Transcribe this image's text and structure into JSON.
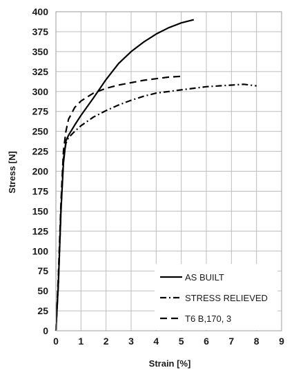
{
  "chart_data": {
    "type": "line",
    "xlabel": "Strain [%]",
    "ylabel": "Stress [N]",
    "xlim": [
      0,
      9
    ],
    "ylim": [
      0,
      400
    ],
    "x_ticks": [
      0,
      1,
      2,
      3,
      4,
      5,
      6,
      7,
      8,
      9
    ],
    "y_ticks": [
      0,
      25,
      50,
      75,
      100,
      125,
      150,
      175,
      200,
      225,
      250,
      275,
      300,
      325,
      350,
      375,
      400
    ],
    "grid": true,
    "legend_position": "bottom-right",
    "series": [
      {
        "name": "AS BUILT",
        "line_style": "solid",
        "color": "#000000",
        "points": [
          [
            0,
            0
          ],
          [
            0.1,
            60
          ],
          [
            0.2,
            150
          ],
          [
            0.3,
            210
          ],
          [
            0.4,
            238
          ],
          [
            0.5,
            245
          ],
          [
            0.75,
            258
          ],
          [
            1,
            270
          ],
          [
            1.5,
            292
          ],
          [
            2,
            315
          ],
          [
            2.5,
            335
          ],
          [
            3,
            350
          ],
          [
            3.5,
            362
          ],
          [
            4,
            372
          ],
          [
            4.5,
            380
          ],
          [
            5,
            386
          ],
          [
            5.5,
            390
          ]
        ]
      },
      {
        "name": "STRESS RELIEVED",
        "line_style": "dash-dot",
        "color": "#000000",
        "points": [
          [
            0,
            0
          ],
          [
            0.1,
            60
          ],
          [
            0.2,
            150
          ],
          [
            0.3,
            215
          ],
          [
            0.4,
            235
          ],
          [
            0.5,
            242
          ],
          [
            0.75,
            250
          ],
          [
            1,
            257
          ],
          [
            1.5,
            268
          ],
          [
            2,
            276
          ],
          [
            2.5,
            283
          ],
          [
            3,
            289
          ],
          [
            3.5,
            294
          ],
          [
            4,
            298
          ],
          [
            4.5,
            300
          ],
          [
            5,
            302
          ],
          [
            5.5,
            304
          ],
          [
            6,
            306
          ],
          [
            6.5,
            307
          ],
          [
            7,
            308
          ],
          [
            7.5,
            309
          ],
          [
            8,
            307
          ]
        ]
      },
      {
        "name": "T6 B,170, 3",
        "line_style": "dashed",
        "color": "#000000",
        "points": [
          [
            0,
            0
          ],
          [
            0.1,
            70
          ],
          [
            0.2,
            160
          ],
          [
            0.3,
            225
          ],
          [
            0.4,
            250
          ],
          [
            0.5,
            265
          ],
          [
            0.75,
            280
          ],
          [
            1,
            288
          ],
          [
            1.5,
            298
          ],
          [
            2,
            304
          ],
          [
            2.5,
            308
          ],
          [
            3,
            311
          ],
          [
            3.5,
            314
          ],
          [
            4,
            316
          ],
          [
            4.5,
            318
          ],
          [
            5,
            319
          ]
        ]
      }
    ]
  }
}
